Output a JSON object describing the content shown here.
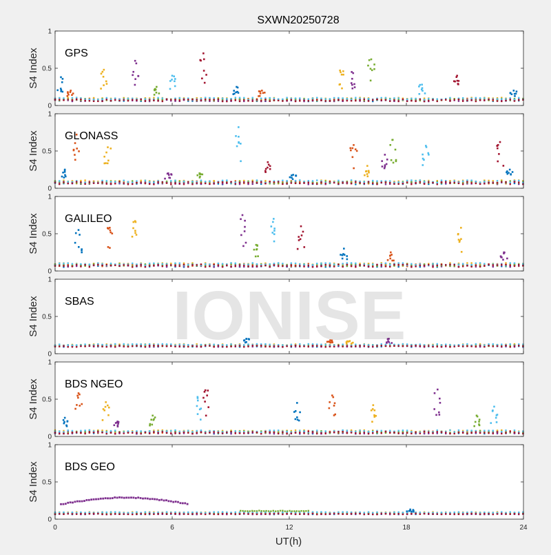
{
  "chart_data": {
    "type": "scatter",
    "title": "SXWN20250728",
    "xlabel": "UT(h)",
    "ylabel": "S4 Index",
    "xlim": [
      0,
      24
    ],
    "ylim": [
      0,
      1
    ],
    "xticks": [
      0,
      6,
      12,
      18,
      24
    ],
    "yticks": [
      0,
      0.5,
      1
    ],
    "watermark": "IONISE",
    "series_colors": [
      "#0072BD",
      "#D95319",
      "#EDB120",
      "#7E2F8E",
      "#77AC30",
      "#4DBEEE",
      "#A2142F"
    ],
    "panels": [
      {
        "name": "GPS",
        "baseline": 0.08,
        "noise": 0.03,
        "spikes": [
          [
            0.3,
            0.38
          ],
          [
            0.8,
            0.2
          ],
          [
            2.5,
            0.48
          ],
          [
            4.1,
            0.6
          ],
          [
            5.2,
            0.25
          ],
          [
            6.0,
            0.4
          ],
          [
            7.6,
            0.7
          ],
          [
            9.3,
            0.25
          ],
          [
            10.6,
            0.2
          ],
          [
            14.6,
            0.47
          ],
          [
            15.2,
            0.45
          ],
          [
            16.2,
            0.62
          ],
          [
            18.8,
            0.28
          ],
          [
            20.6,
            0.4
          ],
          [
            23.5,
            0.2
          ]
        ]
      },
      {
        "name": "GLONASS",
        "baseline": 0.08,
        "noise": 0.035,
        "spikes": [
          [
            0.5,
            0.25
          ],
          [
            1.1,
            0.72
          ],
          [
            2.7,
            0.55
          ],
          [
            5.8,
            0.2
          ],
          [
            7.4,
            0.2
          ],
          [
            9.4,
            0.82
          ],
          [
            10.9,
            0.35
          ],
          [
            12.2,
            0.18
          ],
          [
            15.3,
            0.58
          ],
          [
            16.0,
            0.3
          ],
          [
            16.9,
            0.45
          ],
          [
            17.3,
            0.65
          ],
          [
            19.0,
            0.57
          ],
          [
            22.8,
            0.62
          ],
          [
            23.3,
            0.25
          ]
        ]
      },
      {
        "name": "GALILEO",
        "baseline": 0.08,
        "noise": 0.035,
        "spikes": [
          [
            1.2,
            0.55
          ],
          [
            2.8,
            0.58
          ],
          [
            4.1,
            0.67
          ],
          [
            9.6,
            0.75
          ],
          [
            10.3,
            0.35
          ],
          [
            11.2,
            0.7
          ],
          [
            12.6,
            0.6
          ],
          [
            14.8,
            0.3
          ],
          [
            17.2,
            0.25
          ],
          [
            20.8,
            0.58
          ],
          [
            23.0,
            0.25
          ]
        ]
      },
      {
        "name": "SBAS",
        "baseline": 0.11,
        "noise": 0.02,
        "spikes": [
          [
            9.8,
            0.2
          ],
          [
            14.1,
            0.18
          ],
          [
            15.1,
            0.17
          ],
          [
            17.1,
            0.2
          ]
        ]
      },
      {
        "name": "BDS NGEO",
        "baseline": 0.06,
        "noise": 0.03,
        "spikes": [
          [
            0.5,
            0.25
          ],
          [
            1.2,
            0.58
          ],
          [
            2.6,
            0.46
          ],
          [
            3.2,
            0.2
          ],
          [
            5.0,
            0.28
          ],
          [
            7.3,
            0.53
          ],
          [
            7.7,
            0.62
          ],
          [
            12.4,
            0.45
          ],
          [
            14.2,
            0.55
          ],
          [
            16.3,
            0.42
          ],
          [
            19.6,
            0.63
          ],
          [
            21.6,
            0.28
          ],
          [
            22.5,
            0.4
          ]
        ]
      },
      {
        "name": "BDS GEO",
        "baseline": 0.08,
        "noise": 0.012,
        "spikes": [
          [
            18.2,
            0.13
          ]
        ]
      }
    ]
  }
}
